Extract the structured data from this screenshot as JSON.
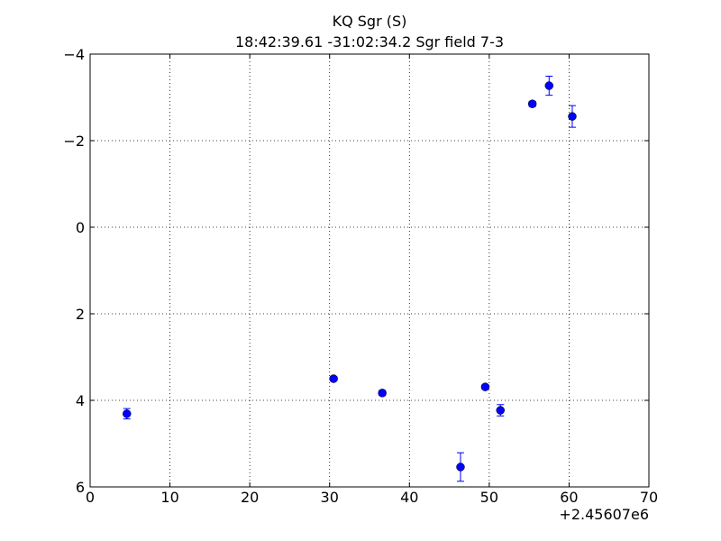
{
  "chart_data": {
    "type": "errorbar",
    "title": "KQ Sgr  (S)",
    "subtitle": "18:42:39.61 -31:02:34.2 Sgr field 7-3",
    "x_offset_label": "+2.45607e6",
    "xlim": [
      0,
      70
    ],
    "xticks": [
      0,
      10,
      20,
      30,
      40,
      50,
      60,
      70
    ],
    "ylim": [
      6,
      -4
    ],
    "yticks": [
      {
        "value": -4,
        "label": "−4"
      },
      {
        "value": -2,
        "label": "−2"
      },
      0,
      2,
      4,
      6
    ],
    "grid": true,
    "series": [
      {
        "color": "#0000ff",
        "x": [
          4.6,
          30.5,
          36.6,
          46.4,
          49.5,
          51.4,
          55.4,
          57.5,
          60.4
        ],
        "values": [
          4.31,
          3.5,
          3.83,
          5.54,
          3.69,
          4.23,
          -2.85,
          -3.27,
          -2.56
        ],
        "errors": [
          0.12,
          0.05,
          0.06,
          0.33,
          0.05,
          0.13,
          0.06,
          0.22,
          0.25
        ]
      }
    ]
  }
}
